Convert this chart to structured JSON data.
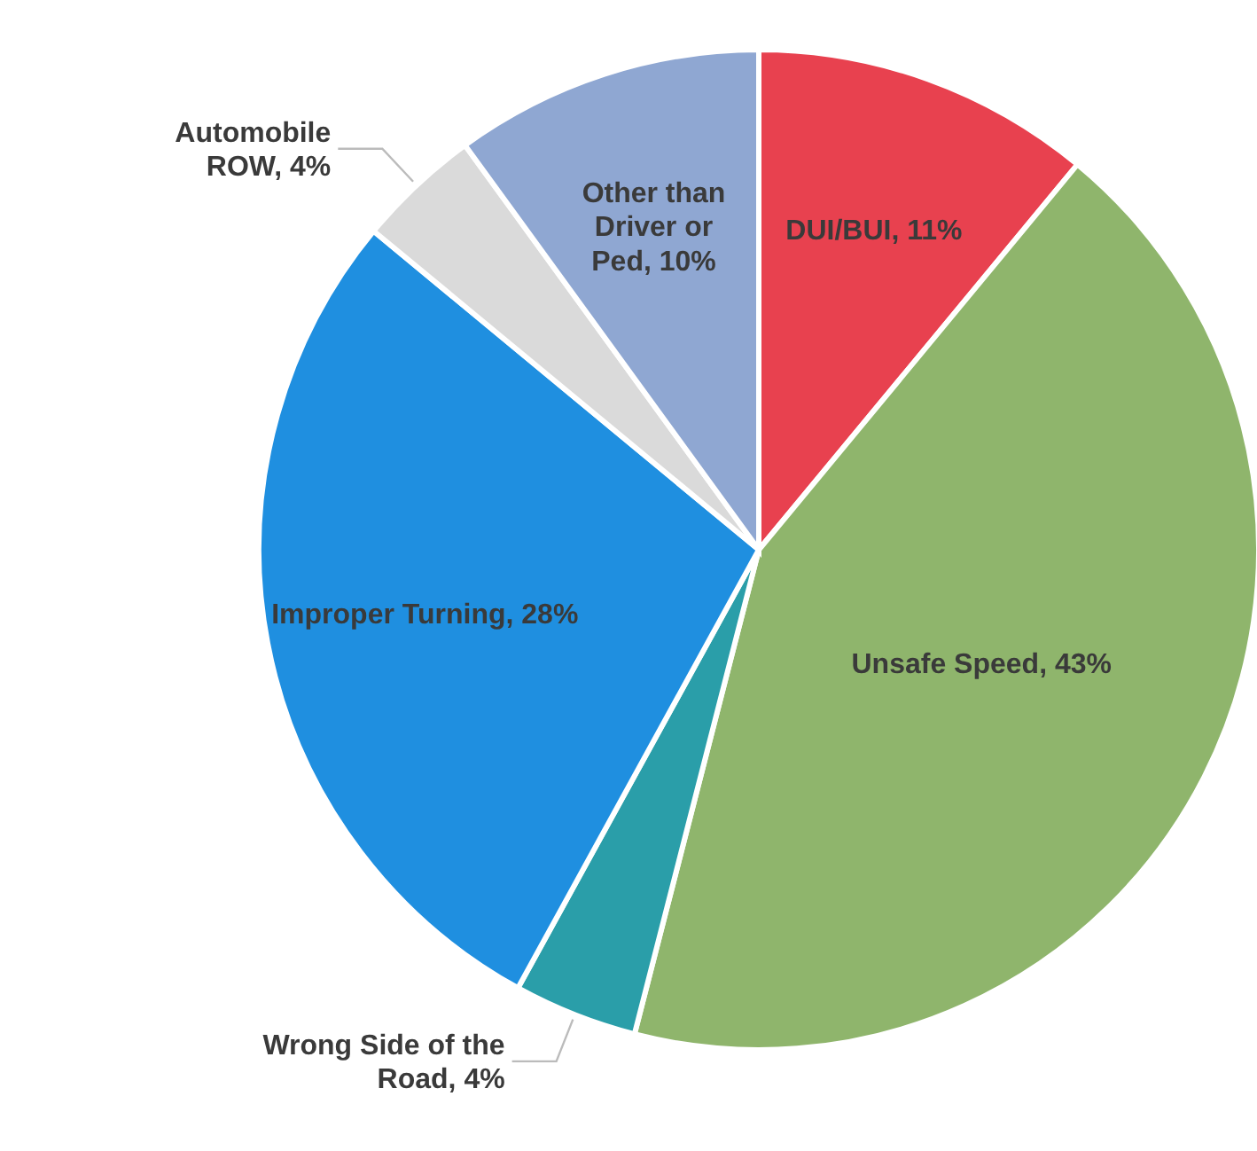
{
  "chart_data": {
    "type": "pie",
    "categories": [
      "DUI/BUI",
      "Unsafe Speed",
      "Wrong Side of the Road",
      "Improper Turning",
      "Automobile ROW",
      "Other than Driver or Ped"
    ],
    "values": [
      11,
      43,
      4,
      28,
      4,
      10
    ],
    "value_labels": [
      "11%",
      "43%",
      "4%",
      "28%",
      "4%",
      "10%"
    ],
    "colors": [
      "#e8414f",
      "#8fb56c",
      "#2a9ea9",
      "#1f8fe0",
      "#dadada",
      "#8fa7d2"
    ]
  }
}
